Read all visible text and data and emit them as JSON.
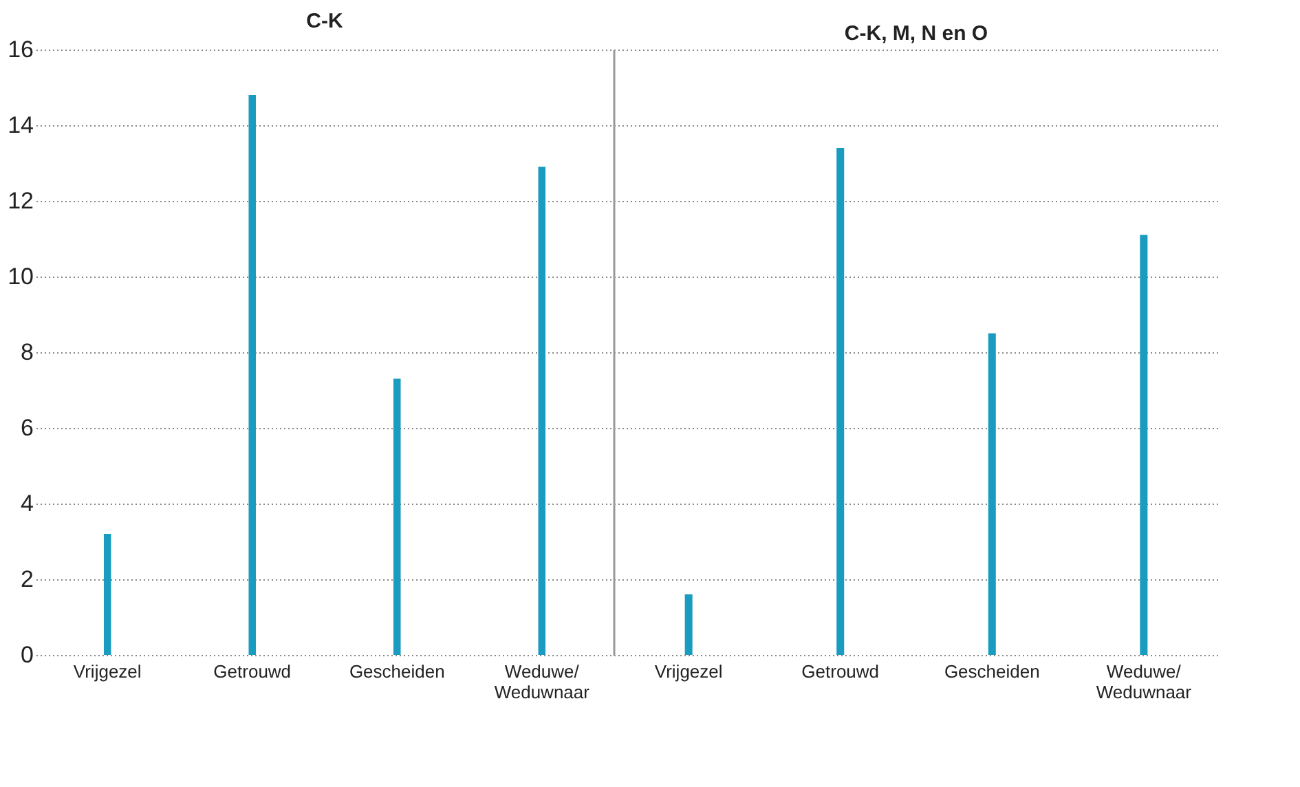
{
  "chart_data": [
    {
      "type": "bar",
      "title": "C-K",
      "categories": [
        "Vrijgezel",
        "Getrouwd",
        "Gescheiden",
        "Weduwe/ Weduwnaar"
      ],
      "values": [
        3.2,
        14.8,
        7.3,
        12.9
      ],
      "color": "#1a9cc0",
      "ylim": [
        0,
        16
      ],
      "yticks": [
        0,
        2,
        4,
        6,
        8,
        10,
        12,
        14,
        16
      ],
      "grid": "y"
    },
    {
      "type": "bar",
      "title": "C-K, M, N en O",
      "categories": [
        "Vrijgezel",
        "Getrouwd",
        "Gescheiden",
        "Weduwe/ Weduwnaar"
      ],
      "values": [
        1.6,
        13.4,
        8.5,
        11.1
      ],
      "color": "#1a9cc0",
      "ylim": [
        0,
        16
      ],
      "yticks": [
        0,
        2,
        4,
        6,
        8,
        10,
        12,
        14,
        16
      ],
      "grid": "y",
      "tick_labels": "x"
    }
  ]
}
